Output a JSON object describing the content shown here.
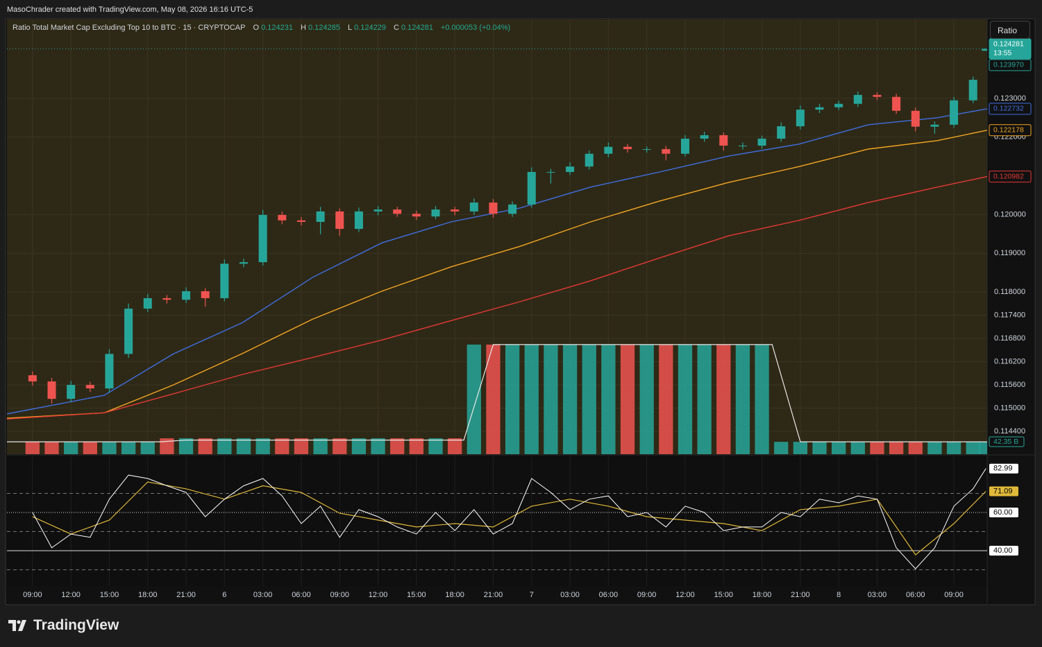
{
  "header": "MasoChrader created with TradingView.com, May 08, 2026 16:16 UTC-5",
  "footer_logo": "TradingView",
  "scale_button": "Ratio",
  "chart_data": {
    "type": "candlestick",
    "title": "Ratio Total Market Cap Excluding Top 10 to BTC · 15 · CRYPTOCAP",
    "ohlc_labels": [
      "O",
      "H",
      "L",
      "C"
    ],
    "change": "+0.000053 (+0.04%)",
    "up_color": "#26a69a",
    "down_color": "#ef5350",
    "x": [
      0,
      1.5,
      3,
      4.5,
      6,
      7.5,
      9,
      10.5,
      12,
      13.5,
      15,
      16.5,
      18,
      19.5,
      21,
      22.5,
      24,
      25.5,
      27,
      28.5,
      30,
      31.5,
      33,
      34.5,
      36,
      37.5,
      39,
      40.5,
      42,
      43.5,
      45,
      46.5,
      48,
      49.5,
      51,
      52.5,
      54,
      55.5,
      57,
      58.5,
      60,
      61.5,
      63,
      64.5,
      66,
      67.5,
      69,
      70.5,
      72,
      73.5,
      74.5
    ],
    "open": [
      0.11585,
      0.11569,
      0.11524,
      0.1156,
      0.11551,
      0.1164,
      0.11757,
      0.11784,
      0.1178,
      0.11802,
      0.11784,
      0.11873,
      0.11877,
      0.11999,
      0.11985,
      0.11981,
      0.12008,
      0.11963,
      0.12008,
      0.12013,
      0.12002,
      0.11995,
      0.12013,
      0.12008,
      0.12031,
      0.12002,
      0.12026,
      0.1211,
      0.1211,
      0.12124,
      0.12157,
      0.12175,
      0.12169,
      0.12169,
      0.12157,
      0.12196,
      0.12205,
      0.12178,
      0.12178,
      0.12196,
      0.12228,
      0.12271,
      0.12277,
      0.12286,
      0.12309,
      0.12304,
      0.12268,
      0.12227,
      0.12232,
      0.12295,
      0.124231
    ],
    "high": [
      0.11595,
      0.11578,
      0.1157,
      0.11568,
      0.11652,
      0.1177,
      0.11795,
      0.11792,
      0.11812,
      0.1181,
      0.11884,
      0.11886,
      0.12012,
      0.12008,
      0.11994,
      0.1202,
      0.12016,
      0.12018,
      0.12022,
      0.1202,
      0.1201,
      0.12022,
      0.1202,
      0.12042,
      0.1204,
      0.12034,
      0.12122,
      0.12118,
      0.12135,
      0.12166,
      0.12186,
      0.12182,
      0.12176,
      0.12177,
      0.12205,
      0.12214,
      0.12212,
      0.12186,
      0.12204,
      0.12238,
      0.12282,
      0.12286,
      0.12294,
      0.12318,
      0.12316,
      0.12312,
      0.12276,
      0.1224,
      0.12304,
      0.12356,
      0.124285
    ],
    "low": [
      0.11558,
      0.11512,
      0.11515,
      0.11542,
      0.1154,
      0.1163,
      0.11748,
      0.1177,
      0.11772,
      0.11762,
      0.11776,
      0.11864,
      0.11868,
      0.11975,
      0.11972,
      0.11949,
      0.11945,
      0.11955,
      0.11998,
      0.11994,
      0.11986,
      0.11988,
      0.11998,
      0.11999,
      0.11992,
      0.11994,
      0.12018,
      0.1208,
      0.12102,
      0.12116,
      0.12148,
      0.1216,
      0.1216,
      0.1214,
      0.1215,
      0.12188,
      0.12165,
      0.12168,
      0.1217,
      0.12188,
      0.1222,
      0.12262,
      0.1227,
      0.12278,
      0.12296,
      0.1226,
      0.12215,
      0.12209,
      0.12224,
      0.12288,
      0.124229
    ],
    "close": [
      0.11569,
      0.11524,
      0.1156,
      0.11551,
      0.1164,
      0.11757,
      0.11784,
      0.1178,
      0.11802,
      0.11784,
      0.11873,
      0.11877,
      0.11999,
      0.11985,
      0.11981,
      0.12008,
      0.11963,
      0.12008,
      0.12013,
      0.12002,
      0.11995,
      0.12013,
      0.12008,
      0.12031,
      0.12002,
      0.12026,
      0.1211,
      0.1211,
      0.12124,
      0.12157,
      0.12175,
      0.12169,
      0.12169,
      0.12157,
      0.12196,
      0.12205,
      0.12178,
      0.12178,
      0.12196,
      0.12228,
      0.12271,
      0.12277,
      0.12286,
      0.12309,
      0.12304,
      0.12268,
      0.12227,
      0.12232,
      0.12295,
      0.12348,
      0.124281
    ],
    "countdown": "13:55",
    "price_lines": [
      {
        "value": 0.12397,
        "label": "0.123970"
      }
    ],
    "xlim": [
      -2,
      74.6
    ],
    "xticks": [
      {
        "value": 0,
        "label": "09:00"
      },
      {
        "value": 3,
        "label": "12:00"
      },
      {
        "value": 6,
        "label": "15:00"
      },
      {
        "value": 9,
        "label": "18:00"
      },
      {
        "value": 12,
        "label": "21:00"
      },
      {
        "value": 15,
        "label": "6"
      },
      {
        "value": 18,
        "label": "03:00"
      },
      {
        "value": 21,
        "label": "06:00"
      },
      {
        "value": 24,
        "label": "09:00"
      },
      {
        "value": 27,
        "label": "12:00"
      },
      {
        "value": 30,
        "label": "15:00"
      },
      {
        "value": 33,
        "label": "18:00"
      },
      {
        "value": 36,
        "label": "21:00"
      },
      {
        "value": 39,
        "label": "7"
      },
      {
        "value": 42,
        "label": "03:00"
      },
      {
        "value": 45,
        "label": "06:00"
      },
      {
        "value": 48,
        "label": "09:00"
      },
      {
        "value": 51,
        "label": "12:00"
      },
      {
        "value": 54,
        "label": "15:00"
      },
      {
        "value": 57,
        "label": "18:00"
      },
      {
        "value": 60,
        "label": "21:00"
      },
      {
        "value": 63,
        "label": "8"
      },
      {
        "value": 66,
        "label": "03:00"
      },
      {
        "value": 69,
        "label": "06:00"
      },
      {
        "value": 72,
        "label": "09:00"
      }
    ],
    "ylim": [
      0.11381,
      0.12504
    ],
    "yticks": [
      {
        "value": 0.123,
        "label": "0.123000"
      },
      {
        "value": 0.122,
        "label": "0.122000"
      },
      {
        "value": 0.12,
        "label": "0.120000"
      },
      {
        "value": 0.119,
        "label": "0.119000"
      },
      {
        "value": 0.118,
        "label": "0.118000"
      },
      {
        "value": 0.1174,
        "label": "0.117400"
      },
      {
        "value": 0.1168,
        "label": "0.116800"
      },
      {
        "value": 0.1162,
        "label": "0.116200"
      },
      {
        "value": 0.1156,
        "label": "0.115600"
      },
      {
        "value": 0.115,
        "label": "0.115000"
      },
      {
        "value": 0.1144,
        "label": "0.114400"
      }
    ],
    "grid": true,
    "overlays": [
      {
        "color": "#3f6fe4",
        "x": [
          -2,
          5.6,
          11,
          16.4,
          21.9,
          27.3,
          32.7,
          38.1,
          43.6,
          49,
          54.4,
          59.9,
          65.3,
          70.7,
          74.6
        ],
        "values": [
          0.11485,
          0.11533,
          0.1164,
          0.11721,
          0.11838,
          0.11927,
          0.11981,
          0.12017,
          0.12071,
          0.1211,
          0.12151,
          0.12182,
          0.12232,
          0.1225,
          0.122732
        ]
      },
      {
        "color": "#f5a623",
        "x": [
          -2,
          5.6,
          11,
          16.4,
          21.9,
          27.3,
          32.7,
          38.1,
          43.6,
          49,
          54.4,
          59.9,
          65.3,
          70.7,
          74.6
        ],
        "values": [
          0.11474,
          0.11488,
          0.1156,
          0.11641,
          0.1173,
          0.11802,
          0.11865,
          0.11918,
          0.11981,
          0.12035,
          0.12083,
          0.12124,
          0.12169,
          0.12191,
          0.122178
        ]
      },
      {
        "color": "#e53935",
        "x": [
          -2,
          5.6,
          11,
          16.4,
          21.9,
          27.3,
          32.7,
          38.1,
          43.6,
          49,
          54.4,
          59.9,
          65.3,
          70.7,
          74.6
        ],
        "values": [
          0.11472,
          0.11488,
          0.11537,
          0.11587,
          0.11631,
          0.11676,
          0.11726,
          0.11775,
          0.11829,
          0.11888,
          0.11945,
          0.11985,
          0.12031,
          0.12071,
          0.120982
        ]
      }
    ],
    "volume": {
      "ylim": [
        0,
        1475
      ],
      "values": [
        42,
        42,
        42,
        42,
        42,
        42,
        42,
        54,
        54,
        54,
        54,
        54,
        54,
        54,
        54,
        54,
        54,
        54,
        54,
        54,
        54,
        54,
        54,
        372,
        372,
        372,
        372,
        372,
        372,
        372,
        372,
        372,
        372,
        372,
        372,
        372,
        372,
        372,
        372,
        42,
        42,
        42,
        42,
        42,
        42,
        42,
        42,
        42,
        42,
        42,
        42.35
      ],
      "value_labels": [
        null,
        null,
        null,
        null,
        null,
        null,
        null,
        null,
        null,
        null,
        null,
        null,
        null,
        null,
        null,
        null,
        null,
        null,
        null,
        null,
        null,
        null,
        null,
        null,
        null,
        null,
        null,
        null,
        null,
        null,
        null,
        null,
        null,
        null,
        null,
        null,
        null,
        null,
        null,
        null,
        null,
        null,
        null,
        null,
        null,
        null,
        null,
        null,
        null,
        null,
        "42.35 B"
      ],
      "ma_color": "#e8e8e8",
      "ma_x": [
        -2,
        10,
        12,
        33.7,
        36,
        57.8,
        60,
        74.6
      ],
      "ma_values": [
        42,
        42,
        48,
        48,
        372,
        372,
        42,
        42
      ]
    },
    "rsi": {
      "ylim": [
        21.5,
        89.8
      ],
      "yticks": [
        {
          "value": 60,
          "label": "60.00"
        },
        {
          "value": 40,
          "label": "40.00"
        }
      ],
      "bands": [
        70,
        50,
        30
      ],
      "color": "#ffffff",
      "values": [
        60,
        41.5,
        48.7,
        47,
        67,
        79.6,
        77.8,
        74,
        70.5,
        57.8,
        67,
        74,
        77.8,
        68.7,
        54.2,
        63.3,
        47,
        61.5,
        57.8,
        52.4,
        48.7,
        60,
        50.5,
        61.5,
        48.7,
        54.2,
        77.8,
        70.5,
        61.5,
        67,
        68.7,
        57.8,
        60,
        52.4,
        63.3,
        60,
        50.5,
        52.4,
        52.4,
        60,
        57.8,
        67,
        65.1,
        68.7,
        67,
        41.5,
        30.5,
        41.5,
        63.3,
        72.4,
        82.99
      ],
      "ma_color": "#e0b93a",
      "ma_x": [
        0,
        3,
        6,
        9,
        12,
        15,
        18,
        21,
        24,
        27,
        30,
        33,
        36,
        39,
        42,
        45,
        48,
        51,
        54,
        57,
        60,
        63,
        66,
        69,
        72,
        74.5
      ],
      "ma_values": [
        57.8,
        48.7,
        56,
        76,
        72.4,
        67,
        74,
        70.5,
        59.6,
        56,
        52.4,
        54.2,
        52.4,
        63.3,
        67,
        63.3,
        57.8,
        56,
        54.2,
        50.5,
        61.5,
        63.3,
        67,
        37.8,
        54.2,
        71.09
      ]
    }
  }
}
